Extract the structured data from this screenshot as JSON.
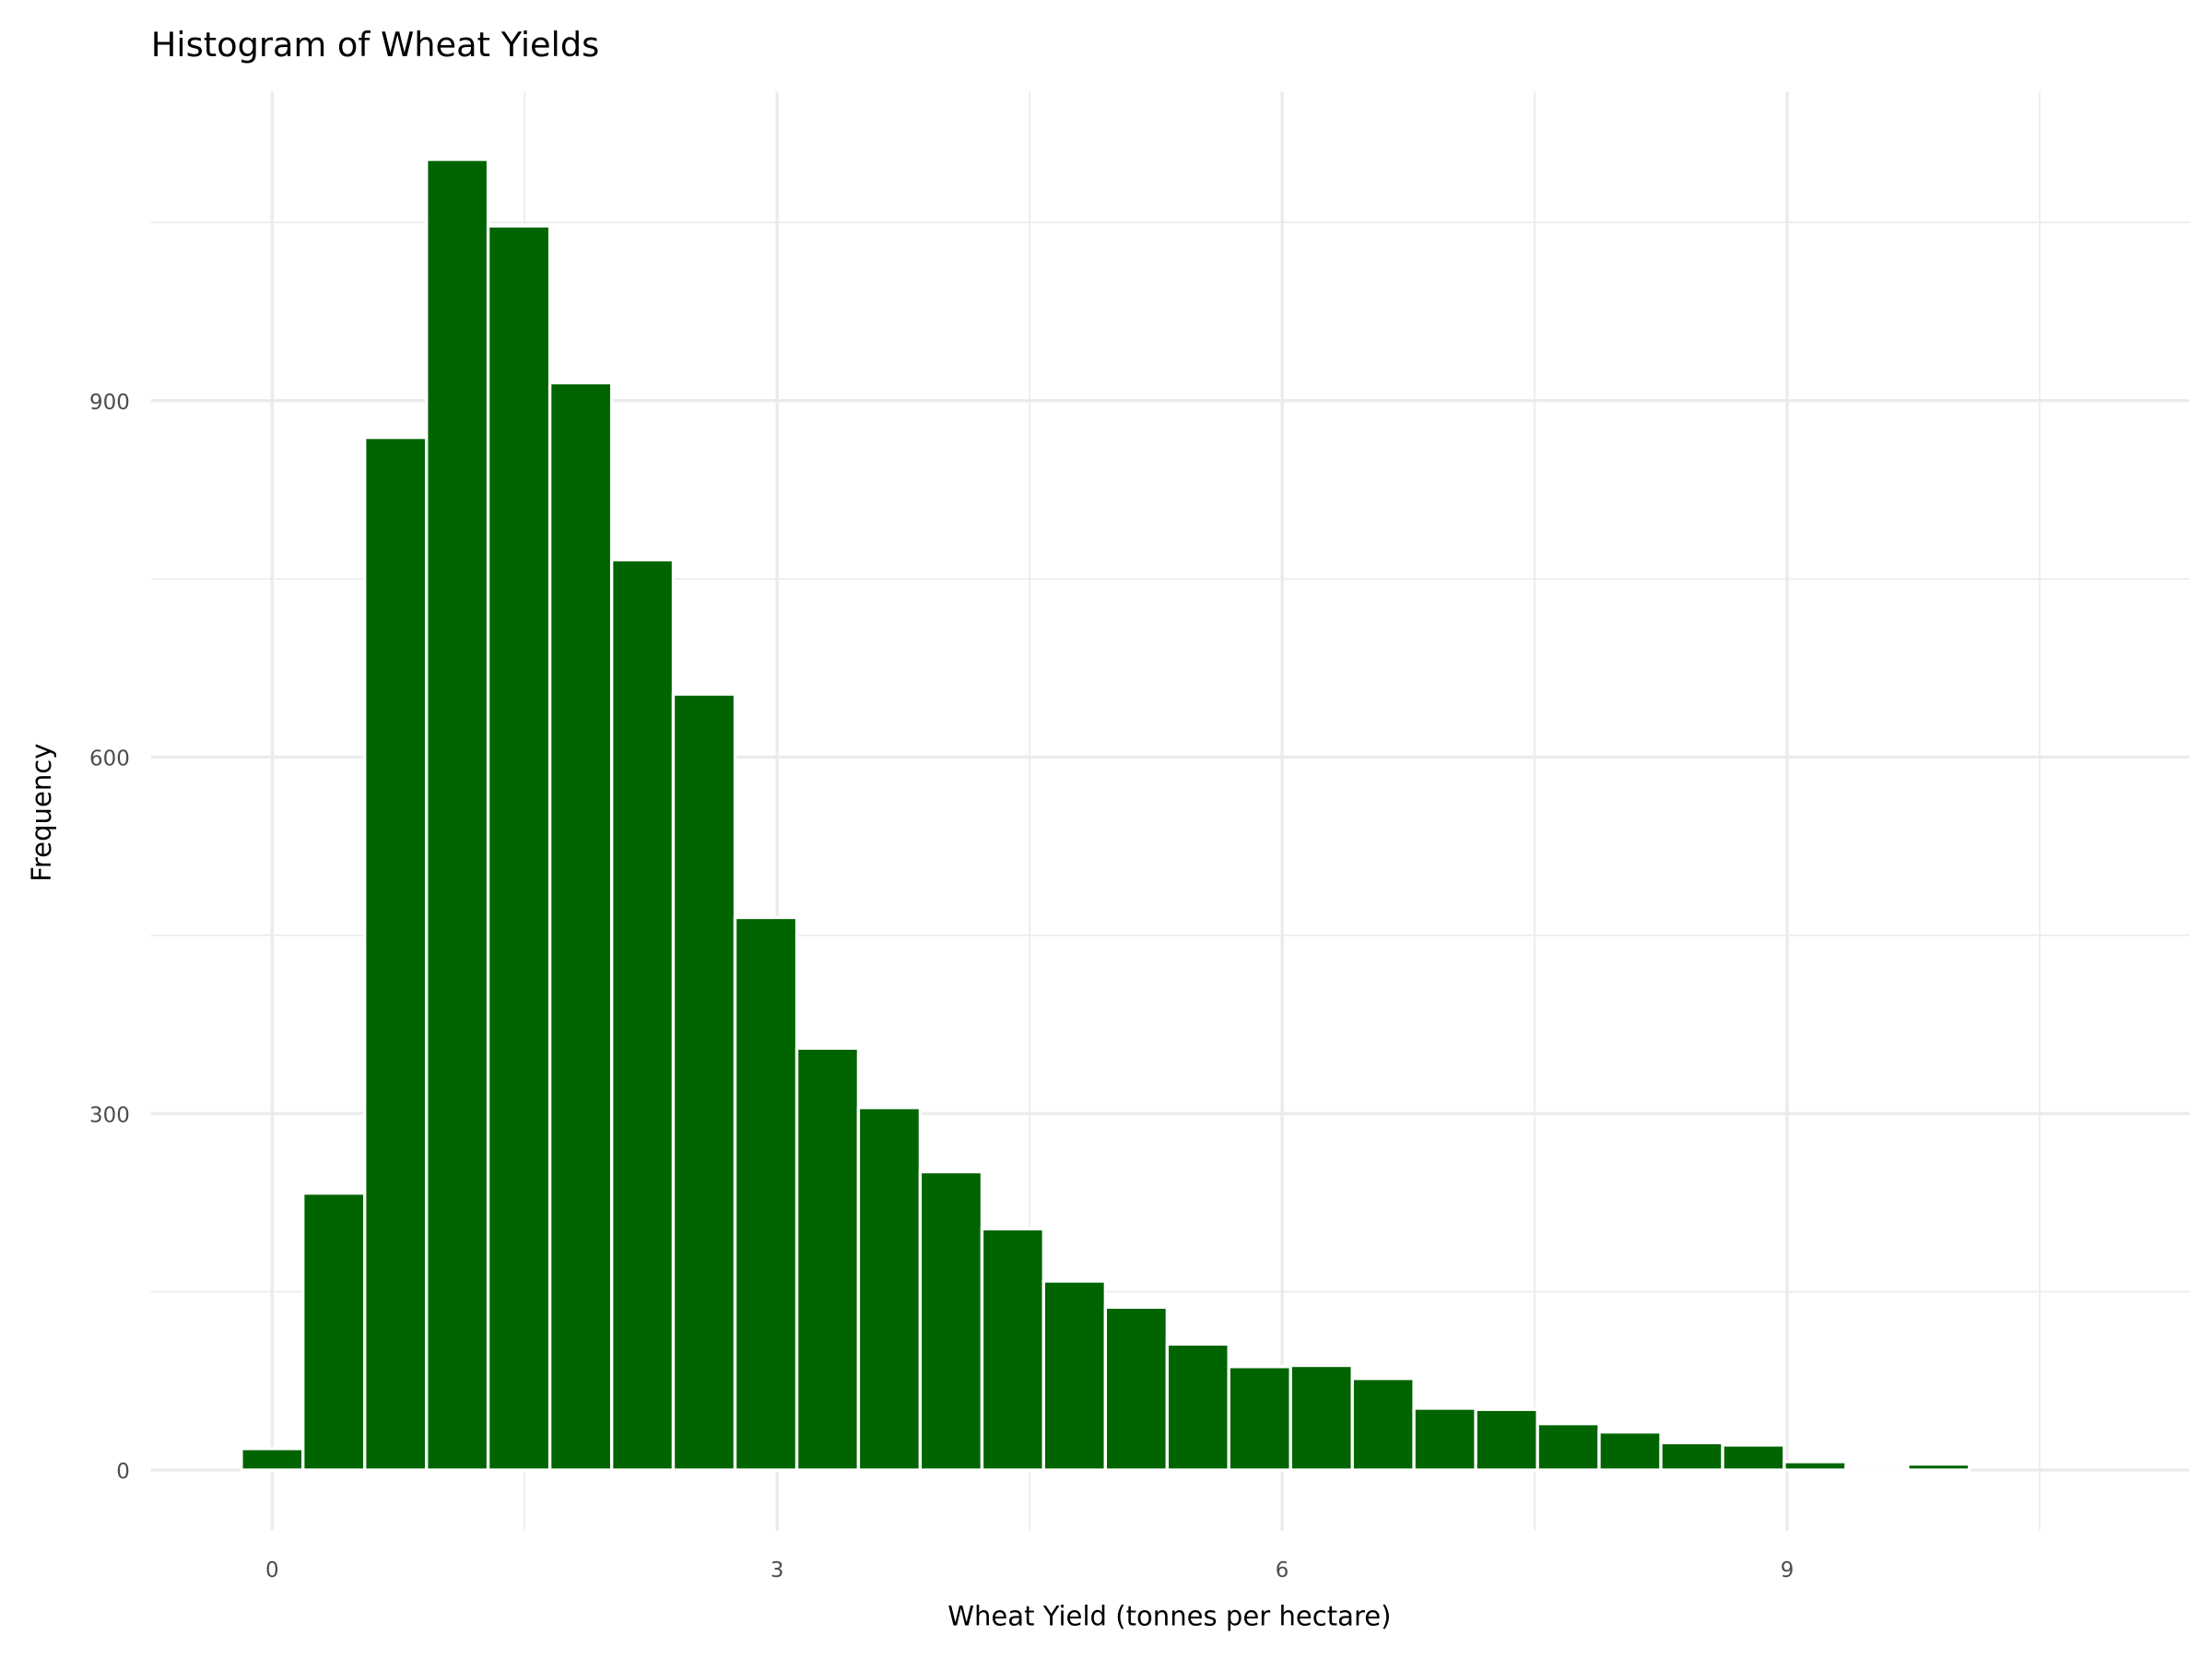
{
  "chart_data": {
    "type": "histogram",
    "title": "Histogram of Wheat Yields",
    "x_label": "Wheat Yield (tonnes per hectare)",
    "y_label": "Frequency",
    "bins": [
      -0.183,
      0.183,
      0.55,
      0.917,
      1.283,
      1.65,
      2.017,
      2.383,
      2.75,
      3.117,
      3.483,
      3.85,
      4.217,
      4.583,
      4.95,
      5.317,
      5.683,
      6.05,
      6.417,
      6.783,
      7.15,
      7.517,
      7.883,
      8.25,
      8.617,
      8.983,
      9.35,
      9.717,
      10.083,
      10.45,
      10.817
    ],
    "values": [
      18,
      233,
      869,
      1103,
      1047,
      915,
      766,
      653,
      465,
      355,
      305,
      251,
      203,
      159,
      137,
      106,
      87,
      88,
      77,
      52,
      51,
      39,
      32,
      23,
      21,
      7,
      2,
      5,
      0,
      0
    ],
    "color": "#006400",
    "xlim": [
      -0.72,
      11.39
    ],
    "ylim": [
      -51,
      1160
    ],
    "xticks": [
      0,
      3,
      6,
      9
    ],
    "yticks": [
      0,
      300,
      600,
      900
    ],
    "x_minor_grid": [
      1.5,
      4.5,
      7.5,
      10.5
    ],
    "y_minor_grid": [
      150,
      450,
      750,
      1050
    ],
    "grid": true
  }
}
